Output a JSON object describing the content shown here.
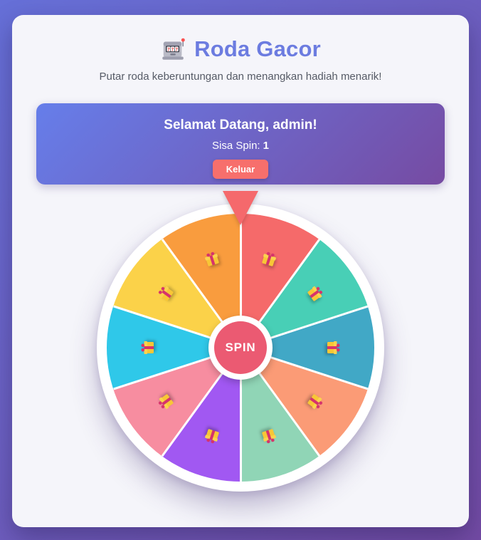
{
  "page": {
    "background_gradient": [
      "#6670d8",
      "#734ba4"
    ],
    "card_color": "#f5f5fa"
  },
  "header": {
    "icon": "slot-machine-icon",
    "title": "Roda Gacor",
    "title_color": "#6c7ce0",
    "subtitle": "Putar roda keberuntungan dan menangkan hadiah menarik!"
  },
  "welcome": {
    "heading": "Selamat Datang, admin!",
    "spins_label": "Sisa Spin:",
    "spins_value": "1",
    "logout_label": "Keluar",
    "gradient": [
      "#667eea",
      "#764ba2"
    ],
    "logout_color": "#f76f6c"
  },
  "wheel": {
    "spin_label": "SPIN",
    "pointer_color": "#f5696c",
    "hub_color": "#eb5a72",
    "divider_color": "#ffffff",
    "gift_colors": {
      "box": "#f8c636",
      "lid": "#fbd34e",
      "ribbon": "#d6336c"
    },
    "segments": [
      {
        "color": "#f56a6a",
        "icon": "gift-icon"
      },
      {
        "color": "#48cfb6",
        "icon": "gift-icon"
      },
      {
        "color": "#41a8c6",
        "icon": "gift-icon"
      },
      {
        "color": "#fb9b76",
        "icon": "gift-icon"
      },
      {
        "color": "#90d5b6",
        "icon": "gift-icon"
      },
      {
        "color": "#a158f2",
        "icon": "gift-icon"
      },
      {
        "color": "#f78da0",
        "icon": "gift-icon"
      },
      {
        "color": "#2fc8e9",
        "icon": "gift-icon"
      },
      {
        "color": "#fbd249",
        "icon": "gift-icon"
      },
      {
        "color": "#f99c3e",
        "icon": "gift-icon"
      }
    ]
  }
}
